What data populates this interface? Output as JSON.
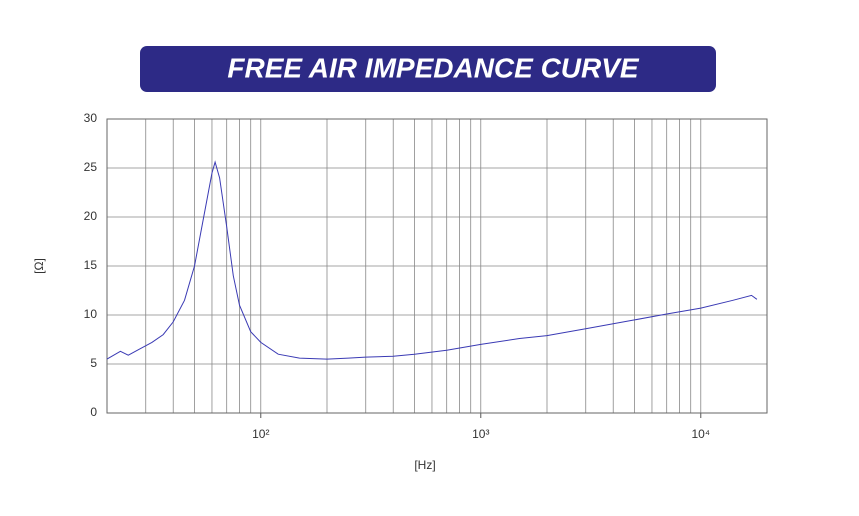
{
  "chart_data": {
    "type": "line",
    "title": "FREE AIR IMPEDANCE CURVE",
    "x_label": "[Hz]",
    "y_label": "[Ω]",
    "x_scale": "log",
    "xlim": [
      20,
      20000
    ],
    "xticks": [
      {
        "value": 100,
        "label": "10²"
      },
      {
        "value": 1000,
        "label": "10³"
      },
      {
        "value": 10000,
        "label": "10⁴"
      }
    ],
    "xgrid": [
      20,
      30,
      40,
      50,
      60,
      70,
      80,
      90,
      100,
      200,
      300,
      400,
      500,
      600,
      700,
      800,
      900,
      1000,
      2000,
      3000,
      4000,
      5000,
      6000,
      7000,
      8000,
      9000,
      10000
    ],
    "ylim": [
      0,
      30
    ],
    "yticks": [
      0,
      5,
      10,
      15,
      20,
      25,
      30
    ],
    "grid": true,
    "series": [
      {
        "color": "#3a3ab4",
        "x": [
          20,
          23,
          25,
          28,
          32,
          36,
          40,
          45,
          50,
          55,
          60,
          62,
          65,
          70,
          75,
          80,
          90,
          100,
          120,
          150,
          200,
          250,
          300,
          400,
          500,
          700,
          1000,
          1500,
          2000,
          3000,
          4000,
          5000,
          7000,
          10000,
          14000,
          17000,
          18000
        ],
        "values": [
          5.5,
          6.3,
          5.9,
          6.5,
          7.2,
          8,
          9.3,
          11.5,
          15,
          20,
          24.5,
          25.6,
          24,
          19,
          14,
          11,
          8.3,
          7.2,
          6,
          5.6,
          5.5,
          5.6,
          5.7,
          5.8,
          6,
          6.4,
          7,
          7.6,
          7.9,
          8.6,
          9.1,
          9.5,
          10.1,
          10.7,
          11.5,
          12,
          11.6
        ]
      }
    ]
  }
}
